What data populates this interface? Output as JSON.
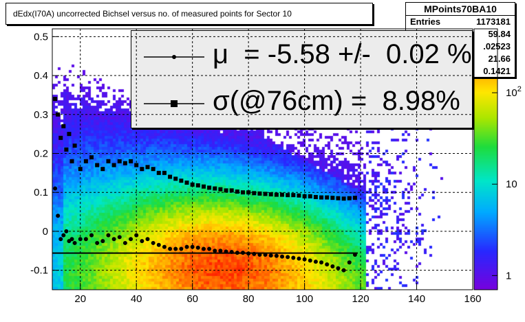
{
  "title": "dEdx(I70A) uncorrected Bichsel versus no. of measured points for Sector 10",
  "stats": {
    "name": "MPoints70BA10",
    "rows": [
      {
        "label": "Entries",
        "value": "1173181"
      },
      {
        "label": "",
        "value": "59.84"
      },
      {
        "label": "",
        "value": ".02523"
      },
      {
        "label": "",
        "value": "21.66"
      },
      {
        "label": "",
        "value": "0.1421"
      }
    ]
  },
  "legend": {
    "mu_text": "μ  = -5.58 +/-  0.02 %",
    "sigma_text": "σ(@76cm) =  8.98%"
  },
  "colors": {
    "frame": "#000000",
    "grid": "#000000",
    "markers": "#000000"
  },
  "chart_data": {
    "type": "heatmap",
    "xlim": [
      10,
      160
    ],
    "ylim": [
      -0.15,
      0.52
    ],
    "x_ticks": [
      20,
      40,
      60,
      80,
      100,
      120,
      140,
      160
    ],
    "y_ticks": [
      -0.1,
      0,
      0.1,
      0.2,
      0.3,
      0.4,
      0.5
    ],
    "colorbar": {
      "scale": "log",
      "range": [
        0.7,
        500
      ],
      "ticks": [
        {
          "value": 1,
          "label": "1"
        },
        {
          "value": 10,
          "label": "10"
        },
        {
          "value": 100,
          "label": "10^2"
        }
      ]
    },
    "grid": true,
    "fit_line": {
      "x": [
        10,
        119
      ],
      "y": [
        -0.0558,
        -0.0558
      ]
    },
    "sigma_series": {
      "x": [
        11,
        12,
        13,
        14,
        15,
        16,
        17,
        18,
        20,
        22,
        24,
        26,
        28,
        30,
        32,
        34,
        36,
        38,
        40,
        42,
        44,
        46,
        48,
        50,
        52,
        54,
        56,
        58,
        60,
        62,
        64,
        66,
        68,
        70,
        72,
        74,
        76,
        78,
        80,
        82,
        84,
        86,
        88,
        90,
        92,
        94,
        96,
        98,
        100,
        102,
        104,
        106,
        108,
        110,
        112,
        114,
        116,
        118
      ],
      "y": [
        0.34,
        0.3,
        0.24,
        0.27,
        0.21,
        0.25,
        0.18,
        0.22,
        0.16,
        0.18,
        0.19,
        0.17,
        0.16,
        0.18,
        0.17,
        0.18,
        0.175,
        0.18,
        0.17,
        0.16,
        0.165,
        0.16,
        0.15,
        0.15,
        0.14,
        0.135,
        0.13,
        0.125,
        0.12,
        0.118,
        0.115,
        0.112,
        0.11,
        0.108,
        0.105,
        0.105,
        0.102,
        0.1,
        0.1,
        0.098,
        0.097,
        0.096,
        0.095,
        0.094,
        0.094,
        0.093,
        0.093,
        0.092,
        0.09,
        0.09,
        0.088,
        0.087,
        0.087,
        0.086,
        0.085,
        0.084,
        0.085,
        0.086
      ]
    },
    "mu_series": {
      "x": [
        11,
        12,
        13,
        14,
        15,
        16,
        17,
        18,
        20,
        22,
        24,
        26,
        28,
        30,
        32,
        34,
        36,
        38,
        40,
        42,
        44,
        46,
        48,
        50,
        52,
        54,
        56,
        58,
        60,
        62,
        64,
        66,
        68,
        70,
        72,
        74,
        76,
        78,
        80,
        82,
        84,
        86,
        88,
        90,
        92,
        94,
        96,
        98,
        100,
        102,
        104,
        106,
        108,
        110,
        112,
        114,
        116,
        118
      ],
      "y": [
        0.11,
        0.04,
        -0.02,
        -0.01,
        0.0,
        -0.025,
        -0.02,
        -0.03,
        -0.02,
        -0.02,
        -0.01,
        -0.03,
        -0.025,
        -0.01,
        -0.02,
        -0.015,
        -0.03,
        -0.02,
        -0.01,
        -0.025,
        -0.02,
        -0.03,
        -0.035,
        -0.04,
        -0.045,
        -0.045,
        -0.045,
        -0.04,
        -0.04,
        -0.042,
        -0.045,
        -0.045,
        -0.05,
        -0.05,
        -0.052,
        -0.053,
        -0.055,
        -0.055,
        -0.057,
        -0.058,
        -0.06,
        -0.06,
        -0.062,
        -0.063,
        -0.065,
        -0.066,
        -0.068,
        -0.07,
        -0.072,
        -0.075,
        -0.078,
        -0.08,
        -0.085,
        -0.09,
        -0.095,
        -0.1,
        -0.08,
        -0.06
      ]
    }
  }
}
